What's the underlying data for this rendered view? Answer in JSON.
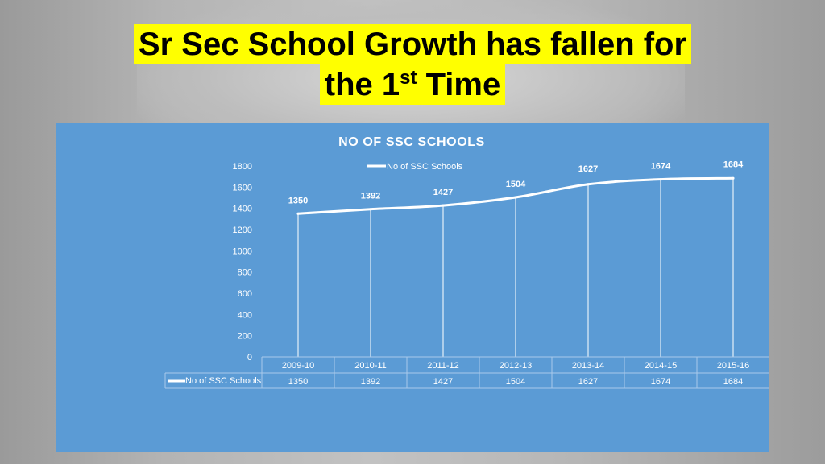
{
  "slide": {
    "title_line1": "Sr Sec School Growth has fallen for",
    "title_line2_pre": "the 1",
    "title_line2_sup": "st",
    "title_line2_post": " Time"
  },
  "colors": {
    "panel": "#5b9bd5",
    "title_highlight": "#ffff00",
    "line": "#ffffff"
  },
  "chart_data": {
    "type": "line",
    "title": "NO OF SSC SCHOOLS",
    "categories": [
      "2009-10",
      "2010-11",
      "2011-12",
      "2012-13",
      "2013-14",
      "2014-15",
      "2015-16"
    ],
    "series": [
      {
        "name": "No of SSC Schools",
        "values": [
          1350,
          1392,
          1427,
          1504,
          1627,
          1674,
          1684
        ]
      }
    ],
    "yticks": [
      0,
      200,
      400,
      600,
      800,
      1000,
      1200,
      1400,
      1600,
      1800
    ],
    "ylim": [
      0,
      1800
    ],
    "legend": "top",
    "data_table": true,
    "drop_lines": true,
    "grid": false
  }
}
